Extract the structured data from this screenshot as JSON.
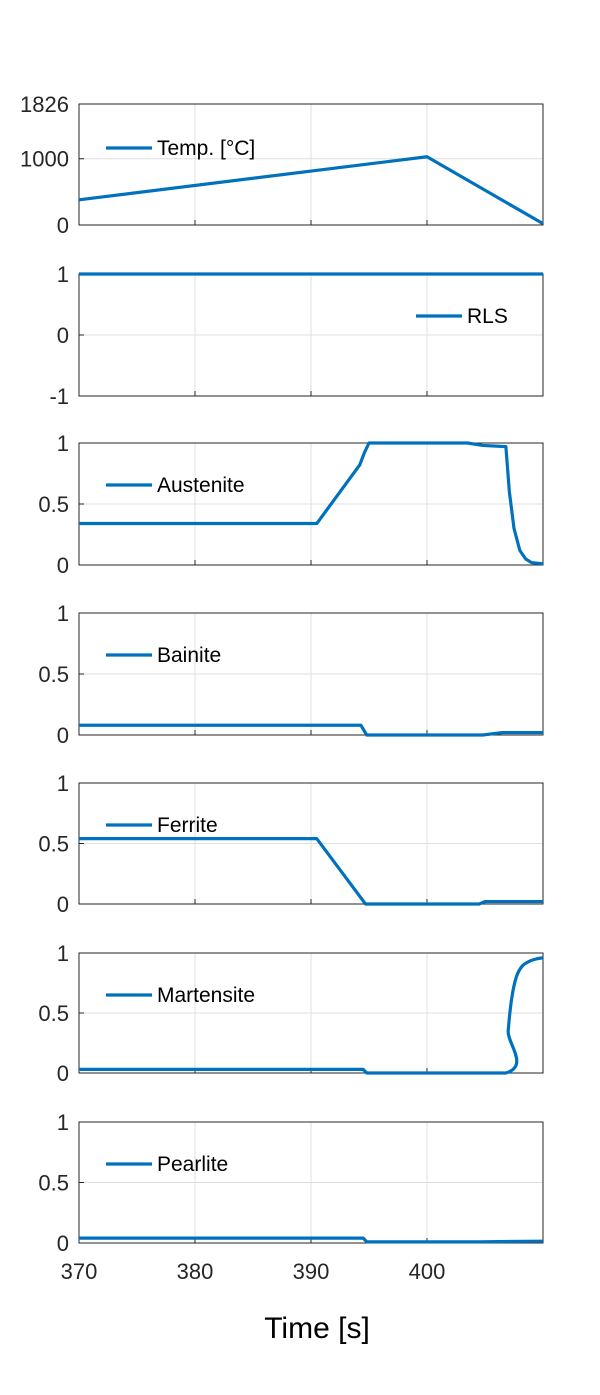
{
  "chart_data": {
    "type": "line",
    "layout": "stacked",
    "xlabel": "Time [s]",
    "xlim": [
      370,
      410
    ],
    "xticks": [
      370,
      380,
      390,
      400
    ],
    "xtick_labels": [
      "370",
      "380",
      "390",
      "400"
    ],
    "grid": true,
    "line_color": "#0072BD",
    "panels": [
      {
        "legend": "Temp. [°C]",
        "legend_position": "top-left",
        "ylim": [
          0,
          1826
        ],
        "yticks": [
          0,
          1000,
          1826
        ],
        "ytick_labels": [
          "0",
          "1000",
          "1826"
        ],
        "x": [
          370,
          400,
          410
        ],
        "y": [
          380,
          1030,
          20
        ]
      },
      {
        "legend": "RLS",
        "legend_position": "right",
        "ylim": [
          -1,
          1
        ],
        "yticks": [
          -1,
          0,
          1
        ],
        "ytick_labels": [
          "-1",
          "0",
          "1"
        ],
        "x": [
          370,
          410
        ],
        "y": [
          1,
          1
        ]
      },
      {
        "legend": "Austenite",
        "legend_position": "left",
        "ylim": [
          0,
          1
        ],
        "yticks": [
          0,
          0.5,
          1
        ],
        "ytick_labels": [
          "0",
          "0.5",
          "1"
        ],
        "x": [
          370,
          390.5,
          394.2,
          394.6,
          395,
          403.5,
          404.8,
          406.8,
          407.1,
          407.5,
          408,
          408.5,
          409,
          410
        ],
        "y": [
          0.34,
          0.34,
          0.82,
          0.92,
          1.0,
          1.0,
          0.98,
          0.97,
          0.6,
          0.3,
          0.12,
          0.05,
          0.02,
          0.01
        ]
      },
      {
        "legend": "Bainite",
        "legend_position": "left",
        "ylim": [
          0,
          1
        ],
        "yticks": [
          0,
          0.5,
          1
        ],
        "ytick_labels": [
          "0",
          "0.5",
          "1"
        ],
        "x": [
          370,
          394.3,
          394.8,
          404.8,
          406.5,
          410
        ],
        "y": [
          0.08,
          0.08,
          0.0,
          0.0,
          0.02,
          0.02
        ]
      },
      {
        "legend": "Ferrite",
        "legend_position": "left",
        "ylim": [
          0,
          1
        ],
        "yticks": [
          0,
          0.5,
          1
        ],
        "ytick_labels": [
          "0",
          "0.5",
          "1"
        ],
        "x": [
          370,
          390.5,
          394.7,
          404.5,
          405,
          410
        ],
        "y": [
          0.54,
          0.54,
          0.0,
          0.0,
          0.02,
          0.02
        ]
      },
      {
        "legend": "Martensite",
        "legend_position": "left",
        "ylim": [
          0,
          1
        ],
        "yticks": [
          0,
          0.5,
          1
        ],
        "ytick_labels": [
          "0",
          "0.5",
          "1"
        ],
        "x": [
          370,
          394.5,
          394.8,
          406.8,
          407,
          407.3,
          407.7,
          408.2,
          408.8,
          409.4,
          410
        ],
        "y": [
          0.03,
          0.03,
          0.0,
          0.0,
          0.35,
          0.62,
          0.8,
          0.89,
          0.93,
          0.95,
          0.96
        ],
        "smooth": true
      },
      {
        "legend": "Pearlite",
        "legend_position": "left",
        "ylim": [
          0,
          1
        ],
        "yticks": [
          0,
          0.5,
          1
        ],
        "ytick_labels": [
          "0",
          "0.5",
          "1"
        ],
        "x": [
          370,
          394.5,
          394.8,
          404.5,
          410
        ],
        "y": [
          0.04,
          0.04,
          0.01,
          0.01,
          0.015
        ]
      }
    ]
  }
}
